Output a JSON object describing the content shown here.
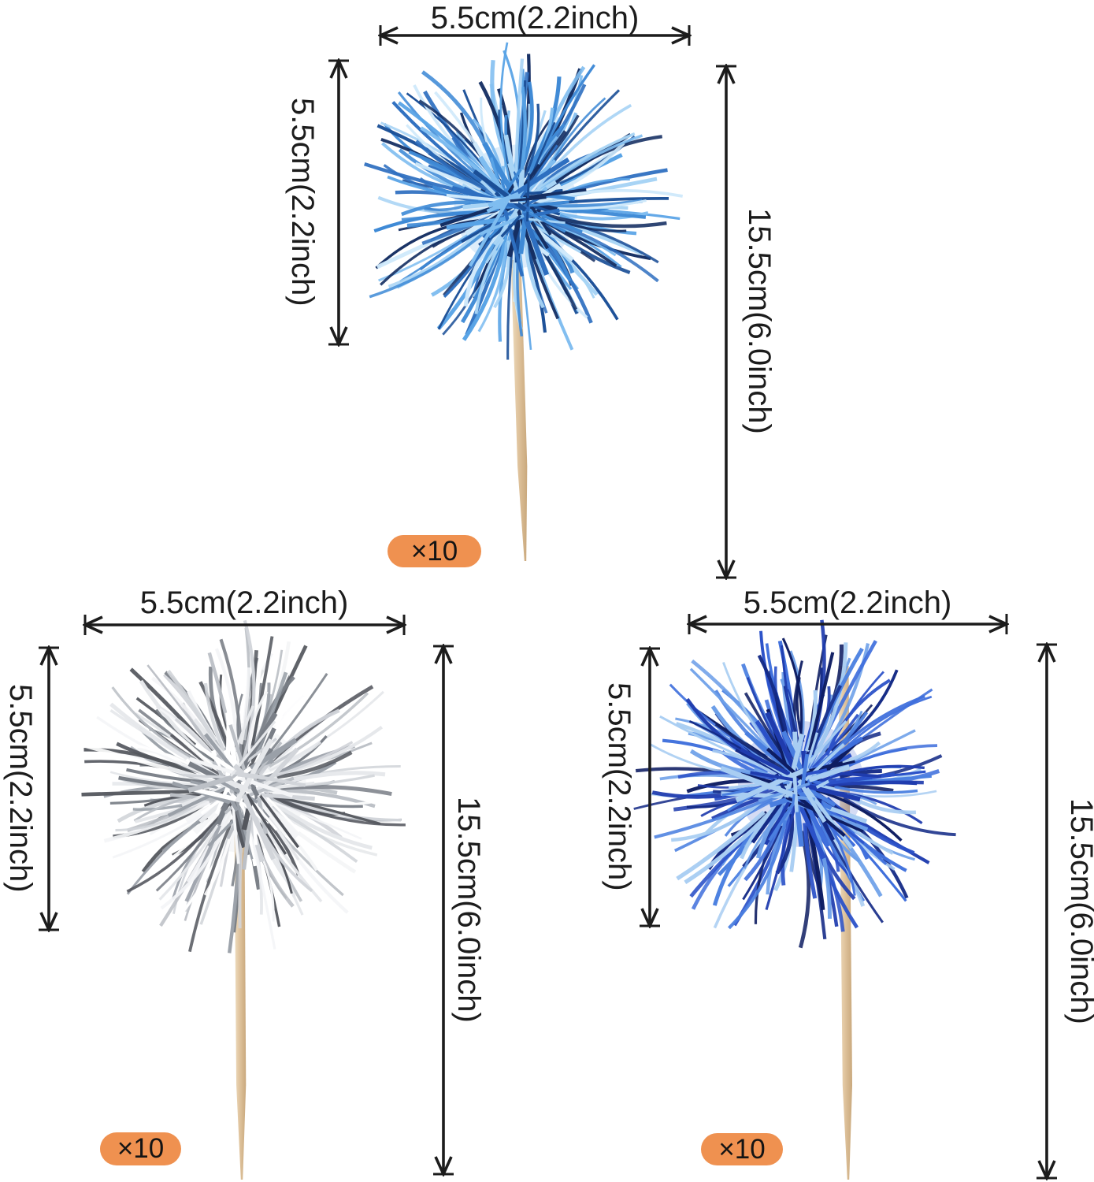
{
  "product": {
    "annotation_color": "#1c1c1c",
    "badge_bg": "#ef9150",
    "badge_text_color": "#141414",
    "stick_colors": [
      "#eeddc0",
      "#e0c49e",
      "#c9a87c"
    ],
    "items": [
      {
        "color_name": "light-blue",
        "width_label": "5.5cm(2.2inch)",
        "pom_height_label": "5.5cm(2.2inch)",
        "total_height_label": "15.5cm(6.0inch)",
        "quantity_badge": "×10",
        "tinsel_palette": [
          "#cfe9fb",
          "#a8d4f5",
          "#7fbdf0",
          "#58a3e6",
          "#3f8ad6",
          "#2e6fc0",
          "#1b4f97",
          "#152f63"
        ]
      },
      {
        "color_name": "silver",
        "width_label": "5.5cm(2.2inch)",
        "pom_height_label": "5.5cm(2.2inch)",
        "total_height_label": "15.5cm(6.0inch)",
        "quantity_badge": "×10",
        "tinsel_palette": [
          "#ffffff",
          "#f4f5f7",
          "#e6e8eb",
          "#d2d5da",
          "#bcc0c6",
          "#9aa0a8",
          "#7a7f87",
          "#54575e"
        ]
      },
      {
        "color_name": "royal-blue",
        "width_label": "5.5cm(2.2inch)",
        "pom_height_label": "5.5cm(2.2inch)",
        "total_height_label": "15.5cm(6.0inch)",
        "quantity_badge": "×10",
        "tinsel_palette": [
          "#a8cdf2",
          "#6d9fe8",
          "#3f6fdc",
          "#2b51c8",
          "#1f3cae",
          "#142a86",
          "#0e1d62",
          "#4a7fe0"
        ]
      }
    ]
  }
}
